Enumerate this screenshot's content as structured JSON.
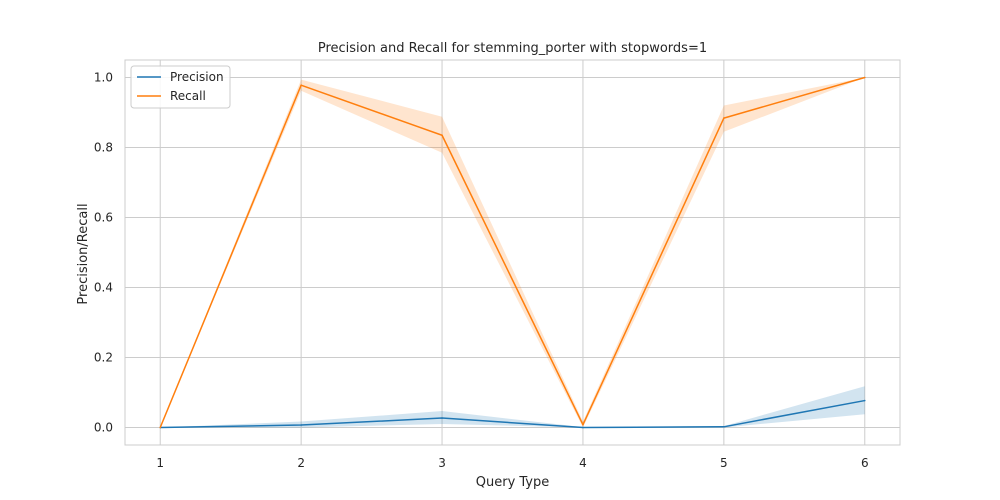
{
  "chart_data": {
    "type": "line",
    "title": "Precision and Recall for stemming_porter with stopwords=1",
    "xlabel": "Query Type",
    "ylabel": "Precision/Recall",
    "x": [
      1,
      2,
      3,
      4,
      5,
      6
    ],
    "xticks": [
      "1",
      "2",
      "3",
      "4",
      "5",
      "6"
    ],
    "yticks": [
      "0.0",
      "0.2",
      "0.4",
      "0.6",
      "0.8",
      "1.0"
    ],
    "xlim": [
      0.75,
      6.25
    ],
    "ylim": [
      -0.05,
      1.05
    ],
    "grid": true,
    "legend_position": "top-left",
    "series": [
      {
        "name": "Precision",
        "color": "#1f77b4",
        "values": [
          0.0,
          0.007,
          0.027,
          0.0,
          0.002,
          0.077
        ],
        "ci_lower": [
          0.0,
          0.0,
          0.01,
          0.0,
          0.0,
          0.038
        ],
        "ci_upper": [
          0.0,
          0.017,
          0.047,
          0.001,
          0.004,
          0.118
        ]
      },
      {
        "name": "Recall",
        "color": "#ff7f0e",
        "values": [
          0.0,
          0.978,
          0.835,
          0.008,
          0.884,
          1.0
        ],
        "ci_lower": [
          0.0,
          0.962,
          0.785,
          0.0,
          0.845,
          1.0
        ],
        "ci_upper": [
          0.0,
          0.994,
          0.888,
          0.017,
          0.92,
          1.0
        ]
      }
    ]
  }
}
